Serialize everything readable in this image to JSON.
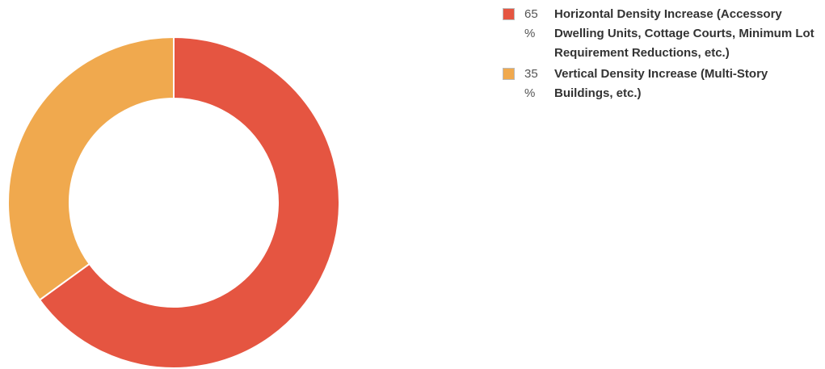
{
  "chart_data": {
    "type": "donut",
    "categories": [
      "Horizontal Density Increase (Accessory Dwelling Units, Cottage Courts, Minimum Lot Requirement Reductions, etc.)",
      "Vertical Density Increase (Multi-Story Buildings, etc.)"
    ],
    "values": [
      65,
      35
    ],
    "value_labels": [
      "65 %",
      "35 %"
    ],
    "colors": [
      "#e55541",
      "#f0a94e"
    ]
  }
}
